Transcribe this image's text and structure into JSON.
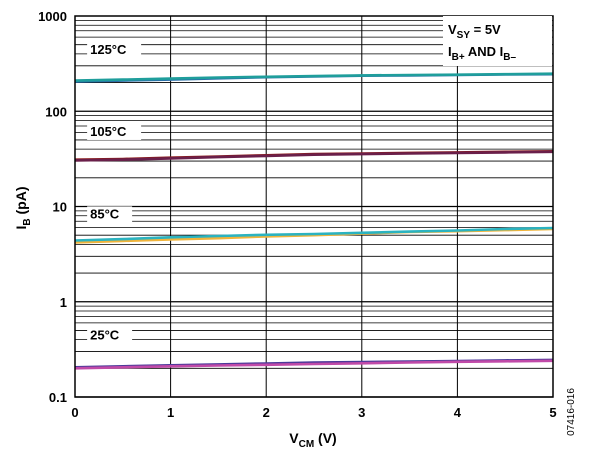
{
  "chart_data": {
    "type": "line",
    "x_scale": "linear",
    "y_scale": "log",
    "xlim": [
      0,
      5
    ],
    "ylim": [
      0.1,
      1000
    ],
    "x_ticks": [
      "0",
      "1",
      "2",
      "3",
      "4",
      "5"
    ],
    "y_ticks": [
      "0.1",
      "1",
      "10",
      "100",
      "1000"
    ],
    "xlabel": {
      "main": "V",
      "sub": "CM",
      "suffix": " (V)"
    },
    "ylabel": {
      "main": "I",
      "sub": "B",
      "suffix": " (pA)"
    },
    "conditions": {
      "line1": {
        "main": "V",
        "sub": "SY",
        "suffix": " = 5V"
      },
      "line2": {
        "a": "I",
        "a_sub": "B+",
        "mid": " AND I",
        "b_sub": "B–"
      }
    },
    "figure_id": "07416-016",
    "grid": true,
    "groups": [
      {
        "label": "125°C",
        "label_at": [
          0.2,
          400
        ],
        "series": [
          {
            "color": "#2a6fa8",
            "x": [
              0,
              0.5,
              1,
              1.5,
              2,
              2.5,
              3,
              3.5,
              4,
              4.5,
              5
            ],
            "y": [
              205,
              210,
              215,
              222,
              228,
              232,
              236,
              238,
              240,
              243,
              245
            ]
          },
          {
            "color": "#1f9e9c",
            "x": [
              0,
              0.5,
              1,
              1.5,
              2,
              2.5,
              3,
              3.5,
              4,
              4.5,
              5
            ],
            "y": [
              210,
              215,
              220,
              226,
              230,
              234,
              238,
              240,
              242,
              245,
              248
            ]
          }
        ]
      },
      {
        "label": "105°C",
        "label_at": [
          0.2,
          55
        ],
        "series": [
          {
            "color": "#8b1a1a",
            "x": [
              0,
              0.5,
              1,
              1.5,
              2,
              2.5,
              3,
              3.5,
              4,
              4.5,
              5
            ],
            "y": [
              31,
              31.5,
              32.5,
              33.5,
              34.5,
              35.5,
              36,
              36.5,
              37,
              37.5,
              38
            ]
          },
          {
            "color": "#6a1f4a",
            "x": [
              0,
              0.5,
              1,
              1.5,
              2,
              2.5,
              3,
              3.5,
              4,
              4.5,
              5
            ],
            "y": [
              30.5,
              31,
              32,
              33,
              34,
              35,
              35.5,
              36,
              36.5,
              37,
              37.5
            ]
          }
        ]
      },
      {
        "label": "85°C",
        "label_at": [
          0.2,
          7.5
        ],
        "series": [
          {
            "color": "#f0b43c",
            "x": [
              0,
              0.5,
              1,
              1.5,
              2,
              2.5,
              3,
              3.5,
              4,
              4.5,
              5
            ],
            "y": [
              4.2,
              4.35,
              4.5,
              4.65,
              4.85,
              5.0,
              5.2,
              5.4,
              5.5,
              5.65,
              5.8
            ]
          },
          {
            "color": "#2bb3c0",
            "x": [
              0,
              0.5,
              1,
              1.5,
              2,
              2.5,
              3,
              3.5,
              4,
              4.5,
              5
            ],
            "y": [
              4.4,
              4.55,
              4.75,
              4.9,
              5.05,
              5.15,
              5.3,
              5.45,
              5.6,
              5.8,
              5.95
            ]
          }
        ]
      },
      {
        "label": "25°C",
        "label_at": [
          0.2,
          0.4
        ],
        "series": [
          {
            "color": "#4b3a9a",
            "x": [
              0,
              0.5,
              1,
              1.5,
              2,
              2.5,
              3,
              3.5,
              4,
              4.5,
              5
            ],
            "y": [
              0.205,
              0.21,
              0.215,
              0.22,
              0.225,
              0.23,
              0.233,
              0.236,
              0.239,
              0.242,
              0.245
            ]
          },
          {
            "color": "#c04aa8",
            "x": [
              0,
              0.5,
              1,
              1.5,
              2,
              2.5,
              3,
              3.5,
              4,
              4.5,
              5
            ],
            "y": [
              0.2,
              0.205,
              0.21,
              0.214,
              0.218,
              0.222,
              0.226,
              0.23,
              0.234,
              0.237,
              0.24
            ]
          }
        ]
      }
    ]
  }
}
